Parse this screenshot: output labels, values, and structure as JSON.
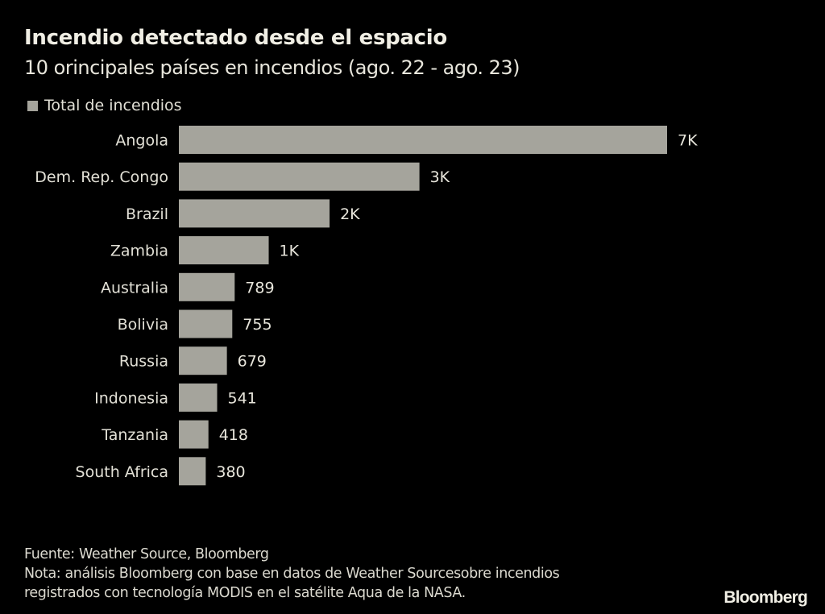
{
  "chart_data": {
    "type": "bar",
    "orientation": "horizontal",
    "title": "Incendio detectado desde el espacio",
    "subtitle": "10 orincipales países en incendios (ago. 22 - ago. 23)",
    "legend": [
      "Total de incendios"
    ],
    "legend_position": "top-left",
    "categories": [
      "Angola",
      "Dem. Rep. Congo",
      "Brazil",
      "Zambia",
      "Australia",
      "Bolivia",
      "Russia",
      "Indonesia",
      "Tanzania",
      "South Africa"
    ],
    "series": [
      {
        "name": "Total de incendios",
        "values": [
          6900,
          3400,
          2130,
          1270,
          789,
          755,
          679,
          541,
          418,
          380
        ],
        "labels": [
          "7K",
          "3K",
          "2K",
          "1K",
          "789",
          "755",
          "679",
          "541",
          "418",
          "380"
        ],
        "color": "#a5a49c"
      }
    ],
    "xlabel": "",
    "ylabel": "",
    "xlim": [
      0,
      6900
    ],
    "grid": false
  },
  "footer": {
    "source": "Fuente: Weather Source, Bloomberg",
    "note_line1": "Nota: análisis Bloomberg con base en datos de Weather Sourcesobre incendios",
    "note_line2": "registrados con tecnología MODIS en el satélite Aqua de la NASA."
  },
  "brand": "Bloomberg",
  "colors": {
    "background": "#000000",
    "bar": "#a5a49c",
    "text": "#e8e6dc"
  }
}
